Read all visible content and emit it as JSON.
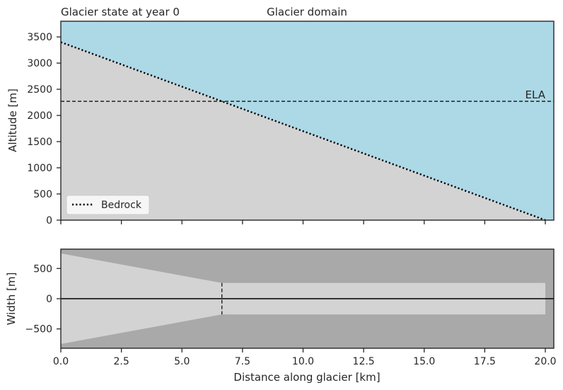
{
  "chart_data": [
    {
      "type": "area",
      "title_left": "Glacier state at year 0",
      "title_center": "Glacier domain",
      "xlabel": "",
      "ylabel": "Altitude [m]",
      "xlim": [
        0,
        20.35
      ],
      "ylim": [
        0,
        3800
      ],
      "xticks": [
        0,
        2.5,
        5,
        7.5,
        10,
        12.5,
        15,
        17.5,
        20
      ],
      "yticks": [
        0,
        500,
        1000,
        1500,
        2000,
        2500,
        3000,
        3500
      ],
      "ytick_labels": [
        "0",
        "500",
        "1000",
        "1500",
        "2000",
        "2500",
        "3000",
        "3500"
      ],
      "background_color": "#add8e6",
      "ground_color": "#d3d3d3",
      "series": [
        {
          "name": "Bedrock",
          "style": "dotted",
          "color": "#000000",
          "x": [
            0,
            20
          ],
          "y": [
            3400,
            0
          ]
        }
      ],
      "ela": {
        "label": "ELA",
        "value": 2270,
        "style": "dashed"
      },
      "legend": {
        "placement": "lower-left",
        "entries": [
          "Bedrock"
        ]
      }
    },
    {
      "type": "area",
      "xlabel": "Distance along glacier [km]",
      "ylabel": "Width [m]",
      "xlim": [
        0,
        20.35
      ],
      "ylim": [
        -820,
        820
      ],
      "xticks": [
        0,
        2.5,
        5,
        7.5,
        10,
        12.5,
        15,
        17.5,
        20
      ],
      "xtick_labels": [
        "0.0",
        "2.5",
        "5.0",
        "7.5",
        "10.0",
        "12.5",
        "15.0",
        "17.5",
        "20.0"
      ],
      "yticks": [
        -500,
        0,
        500
      ],
      "ytick_labels": [
        "−500",
        "0",
        "500"
      ],
      "background_color": "#a9a9a9",
      "domain_color": "#d3d3d3",
      "domain_outline": {
        "x": [
          0,
          6.65,
          6.65,
          20,
          20,
          6.65,
          6.65,
          0
        ],
        "y": [
          750,
          260,
          260,
          260,
          -260,
          -260,
          -260,
          -750
        ]
      },
      "centerline": 0,
      "ela_x": 6.65
    }
  ]
}
